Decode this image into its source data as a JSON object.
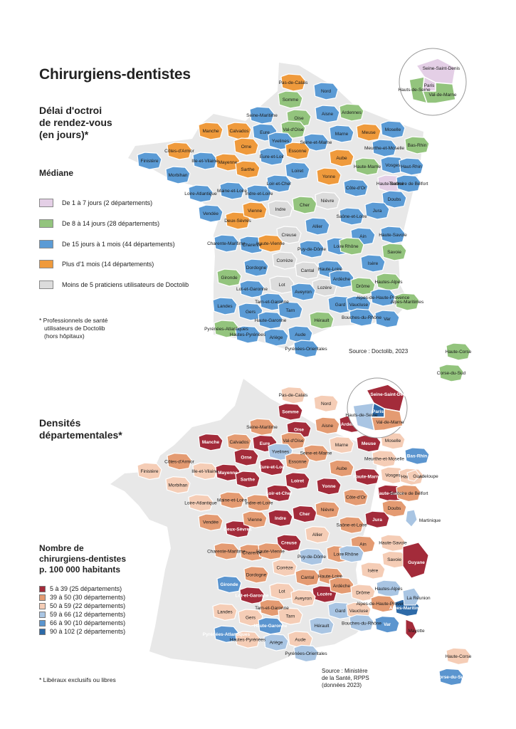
{
  "title": "Chirurgiens-dentistes",
  "map1": {
    "subtitle_lines": [
      "Délai d'octroi",
      "de rendez-vous",
      "(en jours)*"
    ],
    "median_label": "Médiane",
    "legend": [
      {
        "label": "De 1 à 7 jours (2 départements)",
        "color": "#e4cfe6"
      },
      {
        "label": "De 8 à 14 jours (28 départements)",
        "color": "#93c47d"
      },
      {
        "label": "De 15 jours à 1 mois (44 départements)",
        "color": "#5b9bd5"
      },
      {
        "label": "Plus d'1 mois (14 départements)",
        "color": "#ef9a3c"
      },
      {
        "label": "Moins de 5 praticiens utilisateurs de Doctolib",
        "color": "#dcdcdc"
      }
    ],
    "footnote_lines": [
      "* Professionnels de santé",
      "utilisateurs de Doctolib",
      "(hors hôpitaux)"
    ],
    "source": "Source : Doctolib, 2023",
    "inset_labels": [
      "Seine-Saint-Denis",
      "Paris",
      "Hauts-de-Seine",
      "Val-de-Marne"
    ],
    "departments": [
      {
        "name": "Pas-de-Calais",
        "color": "#ef9a3c"
      },
      {
        "name": "Nord",
        "color": "#5b9bd5"
      },
      {
        "name": "Somme",
        "color": "#93c47d"
      },
      {
        "name": "Seine-Maritime",
        "color": "#5b9bd5"
      },
      {
        "name": "Oise",
        "color": "#93c47d"
      },
      {
        "name": "Aisne",
        "color": "#5b9bd5"
      },
      {
        "name": "Ardennes",
        "color": "#93c47d"
      },
      {
        "name": "Manche",
        "color": "#ef9a3c"
      },
      {
        "name": "Calvados",
        "color": "#ef9a3c"
      },
      {
        "name": "Eure",
        "color": "#5b9bd5"
      },
      {
        "name": "Val-d'Oise",
        "color": "#93c47d"
      },
      {
        "name": "Marne",
        "color": "#5b9bd5"
      },
      {
        "name": "Meuse",
        "color": "#ef9a3c"
      },
      {
        "name": "Moselle",
        "color": "#5b9bd5"
      },
      {
        "name": "Bas-Rhin",
        "color": "#93c47d"
      },
      {
        "name": "Côtes-d'Armor",
        "color": "#ef9a3c"
      },
      {
        "name": "Finistère",
        "color": "#5b9bd5"
      },
      {
        "name": "Orne",
        "color": "#ef9a3c"
      },
      {
        "name": "Yvelines",
        "color": "#5b9bd5"
      },
      {
        "name": "Seine-et-Marne",
        "color": "#5b9bd5"
      },
      {
        "name": "Essonne",
        "color": "#ef9a3c"
      },
      {
        "name": "Meurthe-et-Moselle",
        "color": "#5b9bd5"
      },
      {
        "name": "Ille-et-Vilaine",
        "color": "#5b9bd5"
      },
      {
        "name": "Mayenne",
        "color": "#ef9a3c"
      },
      {
        "name": "Eure-et-Loir",
        "color": "#5b9bd5"
      },
      {
        "name": "Aube",
        "color": "#ef9a3c"
      },
      {
        "name": "Haute-Marne",
        "color": "#93c47d"
      },
      {
        "name": "Vosges",
        "color": "#5b9bd5"
      },
      {
        "name": "Haut-Rhin",
        "color": "#5b9bd5"
      },
      {
        "name": "Morbihan",
        "color": "#5b9bd5"
      },
      {
        "name": "Sarthe",
        "color": "#ef9a3c"
      },
      {
        "name": "Loiret",
        "color": "#5b9bd5"
      },
      {
        "name": "Yonne",
        "color": "#ef9a3c"
      },
      {
        "name": "Loire-Atlantique",
        "color": "#5b9bd5"
      },
      {
        "name": "Maine-et-Loire",
        "color": "#5b9bd5"
      },
      {
        "name": "Indre-et-Loire",
        "color": "#5b9bd5"
      },
      {
        "name": "Loir-et-Cher",
        "color": "#5b9bd5"
      },
      {
        "name": "Côte-d'Or",
        "color": "#5b9bd5"
      },
      {
        "name": "Haute-Saône",
        "color": "#e4cfe6"
      },
      {
        "name": "Territoire de Belfort",
        "color": "#5b9bd5"
      },
      {
        "name": "Vendée",
        "color": "#5b9bd5"
      },
      {
        "name": "Indre",
        "color": "#dcdcdc"
      },
      {
        "name": "Cher",
        "color": "#93c47d"
      },
      {
        "name": "Nièvre",
        "color": "#dcdcdc"
      },
      {
        "name": "Doubs",
        "color": "#5b9bd5"
      },
      {
        "name": "Deux-Sèvres",
        "color": "#ef9a3c"
      },
      {
        "name": "Vienne",
        "color": "#ef9a3c"
      },
      {
        "name": "Saône-et-Loire",
        "color": "#5b9bd5"
      },
      {
        "name": "Jura",
        "color": "#5b9bd5"
      },
      {
        "name": "Allier",
        "color": "#5b9bd5"
      },
      {
        "name": "Creuse",
        "color": "#dcdcdc"
      },
      {
        "name": "Ain",
        "color": "#5b9bd5"
      },
      {
        "name": "Haute-Savoie",
        "color": "#5b9bd5"
      },
      {
        "name": "Charente-Maritime",
        "color": "#5b9bd5"
      },
      {
        "name": "Charente",
        "color": "#5b9bd5"
      },
      {
        "name": "Haute-Vienne",
        "color": "#ef9a3c"
      },
      {
        "name": "Puy-de-Dôme",
        "color": "#5b9bd5"
      },
      {
        "name": "Loire",
        "color": "#5b9bd5"
      },
      {
        "name": "Rhône",
        "color": "#93c47d"
      },
      {
        "name": "Savoie",
        "color": "#93c47d"
      },
      {
        "name": "Corrèze",
        "color": "#dcdcdc"
      },
      {
        "name": "Cantal",
        "color": "#dcdcdc"
      },
      {
        "name": "Haute-Loire",
        "color": "#5b9bd5"
      },
      {
        "name": "Isère",
        "color": "#5b9bd5"
      },
      {
        "name": "Dordogne",
        "color": "#5b9bd5"
      },
      {
        "name": "Gironde",
        "color": "#93c47d"
      },
      {
        "name": "Lot",
        "color": "#dcdcdc"
      },
      {
        "name": "Lozère",
        "color": "#dcdcdc"
      },
      {
        "name": "Ardèche",
        "color": "#5b9bd5"
      },
      {
        "name": "Drôme",
        "color": "#93c47d"
      },
      {
        "name": "Hautes-Alpes",
        "color": "#93c47d"
      },
      {
        "name": "Lot-et-Garonne",
        "color": "#5b9bd5"
      },
      {
        "name": "Tarn-et-Garonne",
        "color": "#5b9bd5"
      },
      {
        "name": "Aveyron",
        "color": "#5b9bd5"
      },
      {
        "name": "Landes",
        "color": "#5b9bd5"
      },
      {
        "name": "Gers",
        "color": "#5b9bd5"
      },
      {
        "name": "Tarn",
        "color": "#5b9bd5"
      },
      {
        "name": "Gard",
        "color": "#5b9bd5"
      },
      {
        "name": "Vaucluse",
        "color": "#5b9bd5"
      },
      {
        "name": "Alpes-de-Haute-Provence",
        "color": "#5b9bd5"
      },
      {
        "name": "Alpes-Maritimes",
        "color": "#93c47d"
      },
      {
        "name": "Haute-Garonne",
        "color": "#5b9bd5"
      },
      {
        "name": "Hérault",
        "color": "#93c47d"
      },
      {
        "name": "Bouches-du-Rhône",
        "color": "#5b9bd5"
      },
      {
        "name": "Var",
        "color": "#5b9bd5"
      },
      {
        "name": "Pyrénées-Atlantiques",
        "color": "#93c47d"
      },
      {
        "name": "Hautes-Pyrénées",
        "color": "#5b9bd5"
      },
      {
        "name": "Ariège",
        "color": "#5b9bd5"
      },
      {
        "name": "Aude",
        "color": "#5b9bd5"
      },
      {
        "name": "Pyrénées-Orientales",
        "color": "#5b9bd5"
      },
      {
        "name": "Haute-Corse",
        "color": "#93c47d"
      },
      {
        "name": "Corse-du-Sud",
        "color": "#93c47d"
      }
    ]
  },
  "map2": {
    "subtitle_lines": [
      "Densités",
      "départementales*"
    ],
    "legend_title_lines": [
      "Nombre de",
      "chirurgiens-dentistes",
      "p. 100 000 habitants"
    ],
    "legend": [
      {
        "label": "5 à 39 (25 départements)",
        "color": "#a32b3a"
      },
      {
        "label": "39 à 50 (30 départements)",
        "color": "#e49b72"
      },
      {
        "label": "50 à 59 (22 départements)",
        "color": "#f5cdb6"
      },
      {
        "label": "59 à 66 (12 départements)",
        "color": "#a9c5e3"
      },
      {
        "label": "66 à 90 (10 départements)",
        "color": "#5b95cf"
      },
      {
        "label": "90 à 102 (2 départements)",
        "color": "#2d6aa8"
      }
    ],
    "footnote": "* Libéraux exclusifs ou libres",
    "source_lines": [
      "Source : Ministère",
      "de la Santé, RPPS",
      "(données 2023)"
    ],
    "inset_labels": [
      "Seine-Saint-Denis",
      "Paris",
      "Hauts-de-Seine",
      "Val-de-Marne"
    ],
    "overseas": [
      {
        "name": "Guadeloupe",
        "color": "#f5cdb6"
      },
      {
        "name": "Martinique",
        "color": "#a9c5e3"
      },
      {
        "name": "Guyane",
        "color": "#a32b3a"
      },
      {
        "name": "La Réunion",
        "color": "#a9c5e3"
      },
      {
        "name": "Mayotte",
        "color": "#a32b3a"
      }
    ],
    "departments": [
      {
        "name": "Pas-de-Calais",
        "color": "#f5cdb6"
      },
      {
        "name": "Nord",
        "color": "#f5cdb6"
      },
      {
        "name": "Somme",
        "color": "#a32b3a"
      },
      {
        "name": "Seine-Maritime",
        "color": "#e49b72"
      },
      {
        "name": "Oise",
        "color": "#a32b3a"
      },
      {
        "name": "Aisne",
        "color": "#e49b72"
      },
      {
        "name": "Ardennes",
        "color": "#a32b3a"
      },
      {
        "name": "Manche",
        "color": "#a32b3a"
      },
      {
        "name": "Calvados",
        "color": "#e49b72"
      },
      {
        "name": "Eure",
        "color": "#a32b3a"
      },
      {
        "name": "Val-d'Oise",
        "color": "#e49b72"
      },
      {
        "name": "Marne",
        "color": "#f5cdb6"
      },
      {
        "name": "Meuse",
        "color": "#a32b3a"
      },
      {
        "name": "Moselle",
        "color": "#f5cdb6"
      },
      {
        "name": "Bas-Rhin",
        "color": "#5b95cf"
      },
      {
        "name": "Côtes-d'Armor",
        "color": "#e49b72"
      },
      {
        "name": "Finistère",
        "color": "#f5cdb6"
      },
      {
        "name": "Orne",
        "color": "#a32b3a"
      },
      {
        "name": "Yvelines",
        "color": "#a9c5e3"
      },
      {
        "name": "Seine-et-Marne",
        "color": "#e49b72"
      },
      {
        "name": "Essonne",
        "color": "#e49b72"
      },
      {
        "name": "Meurthe-et-Moselle",
        "color": "#f5cdb6"
      },
      {
        "name": "Ille-et-Vilaine",
        "color": "#f5cdb6"
      },
      {
        "name": "Mayenne",
        "color": "#a32b3a"
      },
      {
        "name": "Eure-et-Loir",
        "color": "#a32b3a"
      },
      {
        "name": "Aube",
        "color": "#e49b72"
      },
      {
        "name": "Haute-Marne",
        "color": "#a32b3a"
      },
      {
        "name": "Vosges",
        "color": "#f5cdb6"
      },
      {
        "name": "Haut-Rhin",
        "color": "#f5cdb6"
      },
      {
        "name": "Morbihan",
        "color": "#f5cdb6"
      },
      {
        "name": "Sarthe",
        "color": "#a32b3a"
      },
      {
        "name": "Loiret",
        "color": "#a32b3a"
      },
      {
        "name": "Yonne",
        "color": "#a32b3a"
      },
      {
        "name": "Loire-Atlantique",
        "color": "#f5cdb6"
      },
      {
        "name": "Maine-et-Loire",
        "color": "#e49b72"
      },
      {
        "name": "Indre-et-Loire",
        "color": "#e49b72"
      },
      {
        "name": "Loir-et-Cher",
        "color": "#a32b3a"
      },
      {
        "name": "Côte-d'Or",
        "color": "#e49b72"
      },
      {
        "name": "Haute-Saône",
        "color": "#a32b3a"
      },
      {
        "name": "Territoire de Belfort",
        "color": "#e49b72"
      },
      {
        "name": "Vendée",
        "color": "#e49b72"
      },
      {
        "name": "Indre",
        "color": "#a32b3a"
      },
      {
        "name": "Cher",
        "color": "#a32b3a"
      },
      {
        "name": "Nièvre",
        "color": "#e49b72"
      },
      {
        "name": "Doubs",
        "color": "#e49b72"
      },
      {
        "name": "Deux-Sèvres",
        "color": "#a32b3a"
      },
      {
        "name": "Vienne",
        "color": "#e49b72"
      },
      {
        "name": "Saône-et-Loire",
        "color": "#e49b72"
      },
      {
        "name": "Jura",
        "color": "#a32b3a"
      },
      {
        "name": "Allier",
        "color": "#f5cdb6"
      },
      {
        "name": "Creuse",
        "color": "#a32b3a"
      },
      {
        "name": "Ain",
        "color": "#e49b72"
      },
      {
        "name": "Haute-Savoie",
        "color": "#f5cdb6"
      },
      {
        "name": "Charente-Maritime",
        "color": "#e49b72"
      },
      {
        "name": "Charente",
        "color": "#e49b72"
      },
      {
        "name": "Haute-Vienne",
        "color": "#e49b72"
      },
      {
        "name": "Puy-de-Dôme",
        "color": "#a9c5e3"
      },
      {
        "name": "Loire",
        "color": "#e49b72"
      },
      {
        "name": "Rhône",
        "color": "#a9c5e3"
      },
      {
        "name": "Savoie",
        "color": "#f5cdb6"
      },
      {
        "name": "Corrèze",
        "color": "#f5cdb6"
      },
      {
        "name": "Cantal",
        "color": "#e49b72"
      },
      {
        "name": "Haute-Loire",
        "color": "#e49b72"
      },
      {
        "name": "Isère",
        "color": "#f5cdb6"
      },
      {
        "name": "Dordogne",
        "color": "#e49b72"
      },
      {
        "name": "Gironde",
        "color": "#5b95cf"
      },
      {
        "name": "Lot",
        "color": "#f5cdb6"
      },
      {
        "name": "Lozère",
        "color": "#a32b3a"
      },
      {
        "name": "Ardèche",
        "color": "#e49b72"
      },
      {
        "name": "Drôme",
        "color": "#f5cdb6"
      },
      {
        "name": "Hautes-Alpes",
        "color": "#a9c5e3"
      },
      {
        "name": "Lot-et-Garonne",
        "color": "#a32b3a"
      },
      {
        "name": "Tarn-et-Garonne",
        "color": "#e49b72"
      },
      {
        "name": "Aveyron",
        "color": "#f5cdb6"
      },
      {
        "name": "Landes",
        "color": "#f5cdb6"
      },
      {
        "name": "Gers",
        "color": "#f5cdb6"
      },
      {
        "name": "Tarn",
        "color": "#f5cdb6"
      },
      {
        "name": "Gard",
        "color": "#a9c5e3"
      },
      {
        "name": "Vaucluse",
        "color": "#f5cdb6"
      },
      {
        "name": "Alpes-de-Haute-Provence",
        "color": "#e49b72"
      },
      {
        "name": "Alpes-Maritimes",
        "color": "#2d6aa8"
      },
      {
        "name": "Haute-Garonne",
        "color": "#5b95cf"
      },
      {
        "name": "Hérault",
        "color": "#a9c5e3"
      },
      {
        "name": "Bouches-du-Rhône",
        "color": "#a9c5e3"
      },
      {
        "name": "Var",
        "color": "#5b95cf"
      },
      {
        "name": "Pyrénées-Atlantiques",
        "color": "#5b95cf"
      },
      {
        "name": "Hautes-Pyrénées",
        "color": "#f5cdb6"
      },
      {
        "name": "Ariège",
        "color": "#a9c5e3"
      },
      {
        "name": "Aude",
        "color": "#f5cdb6"
      },
      {
        "name": "Pyrénées-Orientales",
        "color": "#a9c5e3"
      },
      {
        "name": "Haute-Corse",
        "color": "#f5cdb6"
      },
      {
        "name": "Corse-du-Sud",
        "color": "#5b95cf"
      }
    ]
  }
}
